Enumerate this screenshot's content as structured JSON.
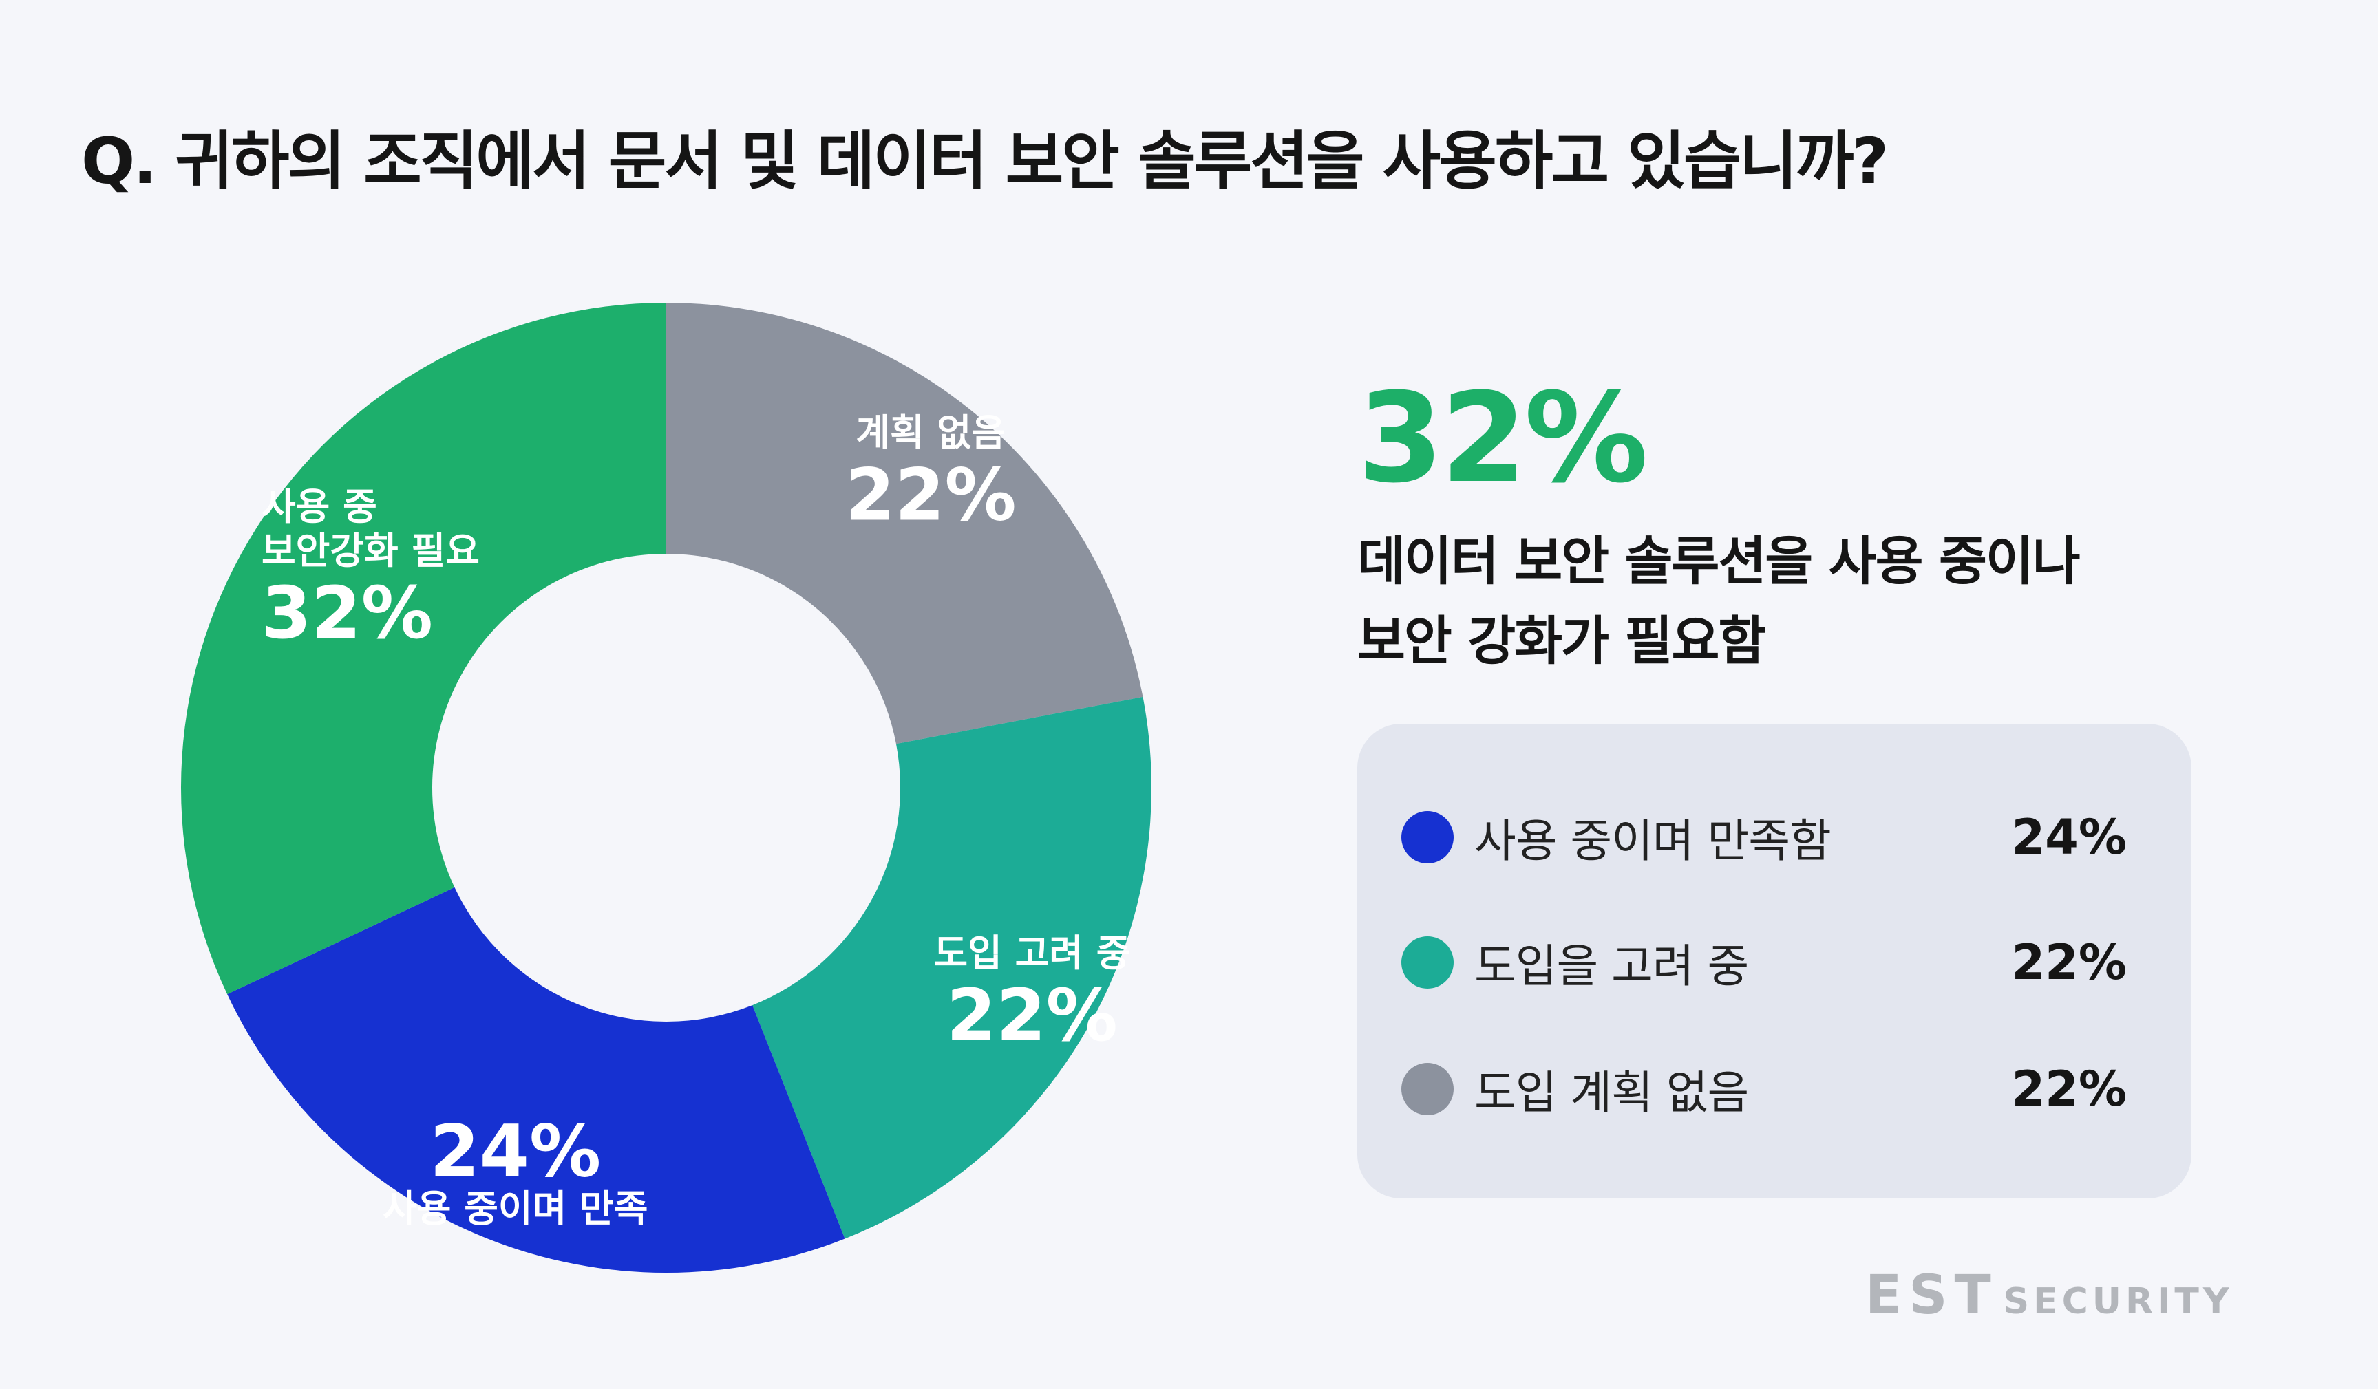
{
  "question": "Q. 귀하의 조직에서 문서 및 데이터 보안 솔루션을 사용하고 있습니까?",
  "highlight": {
    "value": "32%",
    "desc_line1": "데이터 보안 솔루션을 사용 중이나",
    "desc_line2": "보안 강화가 필요함"
  },
  "chart_data": {
    "type": "pie",
    "title": "Q. 귀하의 조직에서 문서 및 데이터 보안 솔루션을 사용하고 있습니까?",
    "slices": [
      {
        "label_lines": [
          "계획 없음"
        ],
        "value": 22,
        "value_label": "22%",
        "color": "#8c929e"
      },
      {
        "label_lines": [
          "도입 고려 중"
        ],
        "value": 22,
        "value_label": "22%",
        "color": "#1cac96"
      },
      {
        "label_lines": [
          "사용 중이며 만족"
        ],
        "value": 24,
        "value_label": "24%",
        "color": "#1631d1"
      },
      {
        "label_lines": [
          "사용 중",
          "보안강화 필요"
        ],
        "value": 32,
        "value_label": "32%",
        "color": "#1daf6c"
      }
    ]
  },
  "legend": [
    {
      "label": "사용 중이며 만족함",
      "value": "24%",
      "color": "#1631d1"
    },
    {
      "label": "도입을 고려 중",
      "value": "22%",
      "color": "#1cac96"
    },
    {
      "label": "도입 계획 없음",
      "value": "22%",
      "color": "#8c929e"
    }
  ],
  "logo": {
    "est": "EST",
    "security": "SECURITY"
  }
}
